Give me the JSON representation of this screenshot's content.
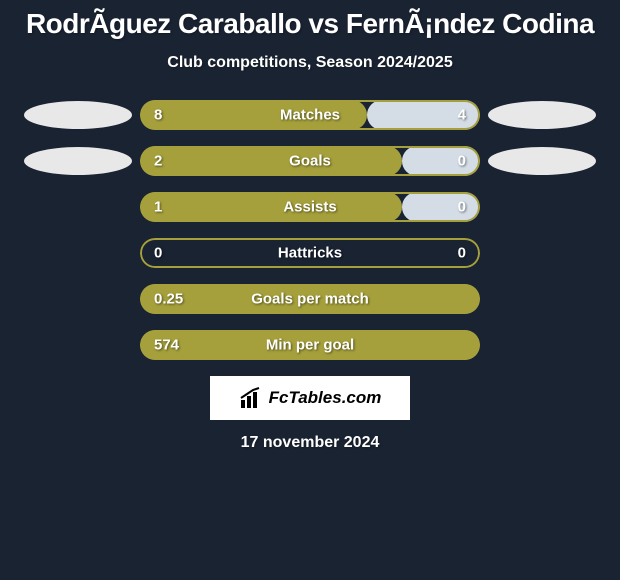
{
  "title": "RodrÃ­guez Caraballo vs FernÃ¡ndez Codina",
  "subtitle": "Club competitions, Season 2024/2025",
  "date": "17 november 2024",
  "logo_text": "FcTables.com",
  "colors": {
    "background": "#1a2332",
    "bar_primary": "#a5a03b",
    "bar_secondary": "#d4dde6",
    "badge": "#e8e8e8",
    "text": "#ffffff"
  },
  "stats": [
    {
      "label": "Matches",
      "left_value": "8",
      "right_value": "4",
      "left_pct": 66.7,
      "right_pct": 33.3,
      "left_color": "#a5a03b",
      "right_color": "#d4dde6",
      "show_badges": true
    },
    {
      "label": "Goals",
      "left_value": "2",
      "right_value": "0",
      "left_pct": 77,
      "right_pct": 23,
      "left_color": "#a5a03b",
      "right_color": "#d4dde6",
      "show_badges": true
    },
    {
      "label": "Assists",
      "left_value": "1",
      "right_value": "0",
      "left_pct": 77,
      "right_pct": 23,
      "left_color": "#a5a03b",
      "right_color": "#d4dde6",
      "show_badges": false
    },
    {
      "label": "Hattricks",
      "left_value": "0",
      "right_value": "0",
      "left_pct": 0,
      "right_pct": 0,
      "left_color": "#a5a03b",
      "right_color": "#d4dde6",
      "show_badges": false
    },
    {
      "label": "Goals per match",
      "left_value": "0.25",
      "right_value": "",
      "left_pct": 100,
      "right_pct": 0,
      "left_color": "#a5a03b",
      "right_color": "#d4dde6",
      "show_badges": false
    },
    {
      "label": "Min per goal",
      "left_value": "574",
      "right_value": "",
      "left_pct": 100,
      "right_pct": 0,
      "left_color": "#a5a03b",
      "right_color": "#d4dde6",
      "show_badges": false
    }
  ]
}
